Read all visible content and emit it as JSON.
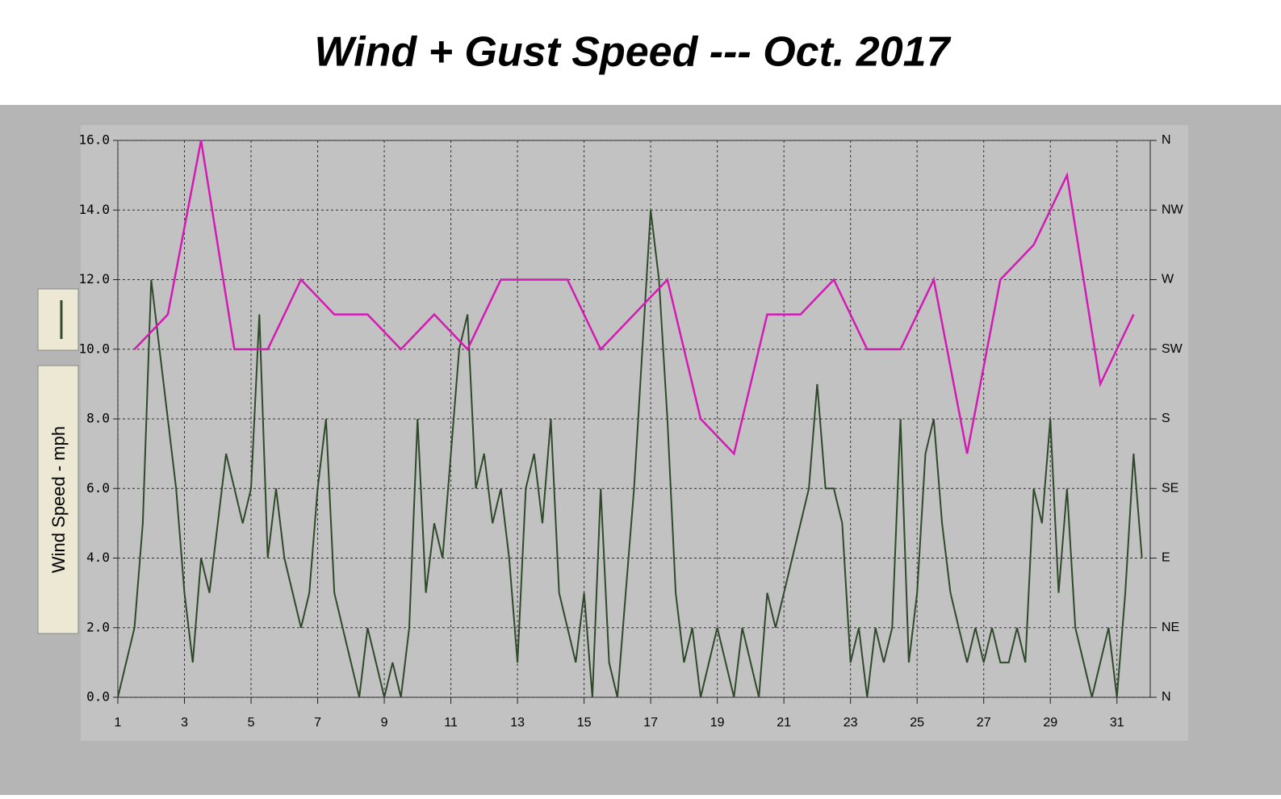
{
  "chart_data": {
    "type": "line",
    "title": "Wind + Gust Speed ---  Oct.  2017",
    "y_label": "Wind Speed - mph",
    "xlim": [
      1,
      32
    ],
    "xticks": [
      1,
      3,
      5,
      7,
      9,
      11,
      13,
      15,
      17,
      19,
      21,
      23,
      25,
      27,
      29,
      31
    ],
    "ylim": [
      0,
      16
    ],
    "yticks": [
      {
        "value": 0,
        "label": "0.0"
      },
      {
        "value": 2,
        "label": "2.0"
      },
      {
        "value": 4,
        "label": "4.0"
      },
      {
        "value": 6,
        "label": "6.0"
      },
      {
        "value": 8,
        "label": "8.0"
      },
      {
        "value": 10,
        "label": "10.0"
      },
      {
        "value": 12,
        "label": "12.0"
      },
      {
        "value": 14,
        "label": "14.0"
      },
      {
        "value": 16,
        "label": "16.0"
      }
    ],
    "y2lim": [
      0,
      16
    ],
    "y2ticks": [
      {
        "value": 0,
        "label": "N"
      },
      {
        "value": 2,
        "label": "NE"
      },
      {
        "value": 4,
        "label": "E"
      },
      {
        "value": 6,
        "label": "SE"
      },
      {
        "value": 8,
        "label": "S"
      },
      {
        "value": 10,
        "label": "SW"
      },
      {
        "value": 12,
        "label": "W"
      },
      {
        "value": 14,
        "label": "NW"
      },
      {
        "value": 16,
        "label": "N"
      }
    ],
    "grid": true,
    "series": [
      {
        "color": "#2f4a2a",
        "x": [
          1,
          1.25,
          1.5,
          1.75,
          2,
          2.25,
          2.5,
          2.75,
          3,
          3.25,
          3.5,
          3.75,
          4,
          4.25,
          4.5,
          4.75,
          5,
          5.25,
          5.5,
          5.75,
          6,
          6.25,
          6.5,
          6.75,
          7,
          7.25,
          7.5,
          7.75,
          8,
          8.25,
          8.5,
          8.75,
          9,
          9.25,
          9.5,
          9.75,
          10,
          10.25,
          10.5,
          10.75,
          11,
          11.25,
          11.5,
          11.75,
          12,
          12.25,
          12.5,
          12.75,
          13,
          13.25,
          13.5,
          13.75,
          14,
          14.25,
          14.5,
          14.75,
          15,
          15.25,
          15.5,
          15.75,
          16,
          16.25,
          16.5,
          16.75,
          17,
          17.25,
          17.5,
          17.75,
          18,
          18.25,
          18.5,
          18.75,
          19,
          19.25,
          19.5,
          19.75,
          20,
          20.25,
          20.5,
          20.75,
          21,
          21.25,
          21.5,
          21.75,
          22,
          22.25,
          22.5,
          22.75,
          23,
          23.25,
          23.5,
          23.75,
          24,
          24.25,
          24.5,
          24.75,
          25,
          25.25,
          25.5,
          25.75,
          26,
          26.25,
          26.5,
          26.75,
          27,
          27.25,
          27.5,
          27.75,
          28,
          28.25,
          28.5,
          28.75,
          29,
          29.25,
          29.5,
          29.75,
          30,
          30.25,
          30.5,
          30.75,
          31,
          31.25,
          31.5,
          31.75
        ],
        "values": [
          0,
          1,
          2,
          5,
          12,
          10,
          8,
          6,
          3,
          1,
          4,
          3,
          5,
          7,
          6,
          5,
          6,
          11,
          4,
          6,
          4,
          3,
          2,
          3,
          6,
          8,
          3,
          2,
          1,
          0,
          2,
          1,
          0,
          1,
          0,
          2,
          8,
          3,
          5,
          4,
          7,
          10,
          11,
          6,
          7,
          5,
          6,
          4,
          1,
          6,
          7,
          5,
          8,
          3,
          2,
          1,
          3,
          0,
          6,
          1,
          0,
          3,
          6,
          10,
          14,
          12,
          8,
          3,
          1,
          2,
          0,
          1,
          2,
          1,
          0,
          2,
          1,
          0,
          3,
          2,
          3,
          4,
          5,
          6,
          9,
          6,
          6,
          5,
          1,
          2,
          0,
          2,
          1,
          2,
          8,
          1,
          3,
          7,
          8,
          5,
          3,
          2,
          1,
          2,
          1,
          2,
          1,
          1,
          2,
          1,
          6,
          5,
          8,
          3,
          6,
          2,
          1,
          0,
          1,
          2,
          0,
          3,
          7,
          4
        ]
      },
      {
        "color": "#d41ab4",
        "axis": "y2",
        "x": [
          1.5,
          2.5,
          3.5,
          4.5,
          5.5,
          6.5,
          7.5,
          8.5,
          9.5,
          10.5,
          11.5,
          12.5,
          13.5,
          14.5,
          15.5,
          16.5,
          17.5,
          18.5,
          19.5,
          20.5,
          21.5,
          22.5,
          23.5,
          24.5,
          25.5,
          26.5,
          27.5,
          28.5,
          29.5,
          30.5,
          31.5
        ],
        "values": [
          10,
          11,
          16,
          10,
          10,
          12,
          11,
          11,
          10,
          11,
          10,
          12,
          12,
          12,
          10,
          11,
          12,
          8,
          7,
          11,
          11,
          12,
          10,
          10,
          12,
          7,
          12,
          13,
          15,
          9,
          11
        ]
      }
    ]
  }
}
